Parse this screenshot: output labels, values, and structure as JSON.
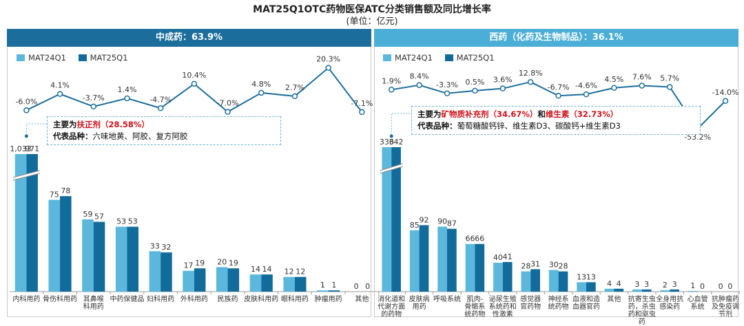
{
  "title": "MAT25Q1OTC药物医保ATC分类销售额及同比增长率",
  "subtitle": "(单位：亿元)",
  "colors": {
    "mat24": "#5bb8dc",
    "mat25": "#116b9b",
    "growth_line": "#1b6e9c",
    "header_left": "#1b6e9c",
    "header_right": "#4aaed6"
  },
  "chart_data": [
    {
      "type": "bar",
      "panel": "left",
      "header": "中成药：63.9%",
      "legend": [
        "MAT24Q1",
        "MAT25Q1"
      ],
      "categories": [
        "内科用药",
        "骨伤科用药",
        "耳鼻喉\n科用药",
        "中药保健品",
        "妇科用药",
        "外科用药",
        "民族药",
        "皮肤科用药",
        "眼科用药",
        "肿瘤用药",
        "其他"
      ],
      "series": [
        {
          "name": "MAT24Q1",
          "values": [
            1033,
            75,
            59,
            53,
            33,
            17,
            20,
            14,
            12,
            1,
            0
          ],
          "labels": [
            "1,033",
            "75",
            "59",
            "53",
            "33",
            "17",
            "20",
            "14",
            "12",
            "1",
            "0"
          ]
        },
        {
          "name": "MAT25Q1",
          "values": [
            971,
            78,
            57,
            53,
            32,
            19,
            19,
            14,
            12,
            1,
            0
          ],
          "labels": [
            "971",
            "78",
            "57",
            "53",
            "32",
            "19",
            "19",
            "14",
            "12",
            "1",
            "0"
          ]
        }
      ],
      "growth": {
        "values": [
          -6.0,
          4.1,
          -3.7,
          1.4,
          -4.7,
          10.4,
          -7.0,
          4.8,
          2.7,
          20.3,
          -7.1
        ],
        "labels": [
          "-6.0%",
          "4.1%",
          "-3.7%",
          "1.4%",
          "-4.7%",
          "10.4%",
          "-7.0%",
          "4.8%",
          "2.7%",
          "20.3%",
          "-7.1%"
        ]
      },
      "axis_break": true,
      "note": {
        "prefix": "主要为",
        "highlight1": "扶正剂（28.58%）",
        "middle": "",
        "highlight2": "",
        "line2_label": "代表品种：",
        "line2_text": "六味地黄、阿胶、复方阿胶"
      }
    },
    {
      "type": "bar",
      "panel": "right",
      "header": "西药（化药及生物制品）：36.1%",
      "legend": [
        "MAT24Q1",
        "MAT25Q1"
      ],
      "categories": [
        "消化道和\n代谢方面\n的药物",
        "皮肤病\n用药",
        "呼吸系统",
        "肌肉-\n骨骼系\n统药物",
        "泌尿生殖\n系统药和\n性激素",
        "感觉器\n官药物",
        "神经系\n统药物",
        "血液和造\n血器官药",
        "其他",
        "抗寄生虫\n药，杀虫\n药和驱虫\n药",
        "全身用抗\n感染药",
        "心血管\n系统",
        "抗肿瘤药\n及免疫调\n节剂"
      ],
      "series": [
        {
          "name": "MAT24Q1",
          "values": [
            336,
            85,
            90,
            66,
            40,
            28,
            30,
            13,
            4,
            3,
            2,
            1,
            0
          ],
          "labels": [
            "336",
            "85",
            "90",
            "66",
            "40",
            "28",
            "30",
            "13",
            "4",
            "3",
            "2",
            "1",
            "0"
          ]
        },
        {
          "name": "MAT25Q1",
          "values": [
            342,
            92,
            87,
            66,
            41,
            31,
            28,
            13,
            4,
            3,
            3,
            0,
            0
          ],
          "labels": [
            "342",
            "92",
            "87",
            "66",
            "41",
            "31",
            "28",
            "13",
            "4",
            "3",
            "3",
            "0",
            "0"
          ]
        }
      ],
      "growth": {
        "values": [
          1.9,
          8.4,
          -3.3,
          0.5,
          3.6,
          12.8,
          -6.7,
          -4.6,
          4.5,
          7.6,
          5.7,
          -53.2,
          -14.0
        ],
        "labels": [
          "1.9%",
          "8.4%",
          "-3.3%",
          "0.5%",
          "3.6%",
          "12.8%",
          "-6.7%",
          "-4.6%",
          "4.5%",
          "7.6%",
          "5.7%",
          "-53.2%",
          "-14.0%"
        ]
      },
      "axis_break": true,
      "note": {
        "prefix": "主要为",
        "highlight1": "矿物质补充剂（34.67%）",
        "middle": "和",
        "highlight2": "维生素（32.73%）",
        "line2_label": "代表品种：",
        "line2_text": "葡萄糖酸钙锌、维生素D3、碳酸钙+维生素D3"
      }
    }
  ]
}
